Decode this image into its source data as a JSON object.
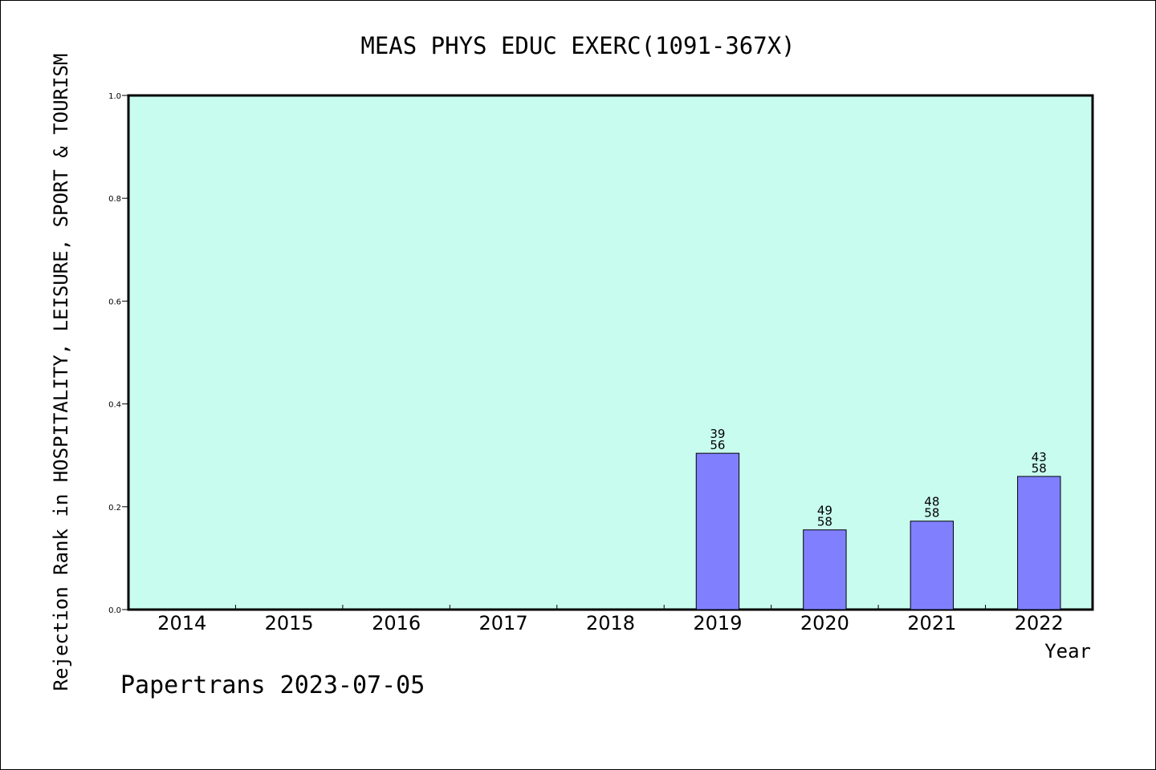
{
  "colors": {
    "plot_background": "#c8fcef",
    "bar_fill": "#8080ff",
    "bar_stroke": "#000000",
    "axis": "#000000"
  },
  "footer": "Papertrans 2023-07-05",
  "chart_data": {
    "type": "bar",
    "title": "MEAS PHYS EDUC EXERC(1091-367X)",
    "xlabel": "Year",
    "ylabel": "Rejection Rank in HOSPITALITY, LEISURE, SPORT & TOURISM",
    "ylim": [
      0,
      1.0
    ],
    "yticks": [
      "0.0",
      "0.2",
      "0.4",
      "0.6",
      "0.8",
      "1.0"
    ],
    "grid": false,
    "categories": [
      "2014",
      "2015",
      "2016",
      "2017",
      "2018",
      "2019",
      "2020",
      "2021",
      "2022"
    ],
    "values": [
      null,
      null,
      null,
      null,
      null,
      0.304,
      0.155,
      0.172,
      0.259
    ],
    "bar_labels": [
      null,
      null,
      null,
      null,
      null,
      [
        "39",
        "56"
      ],
      [
        "49",
        "58"
      ],
      [
        "48",
        "58"
      ],
      [
        "43",
        "58"
      ]
    ]
  }
}
